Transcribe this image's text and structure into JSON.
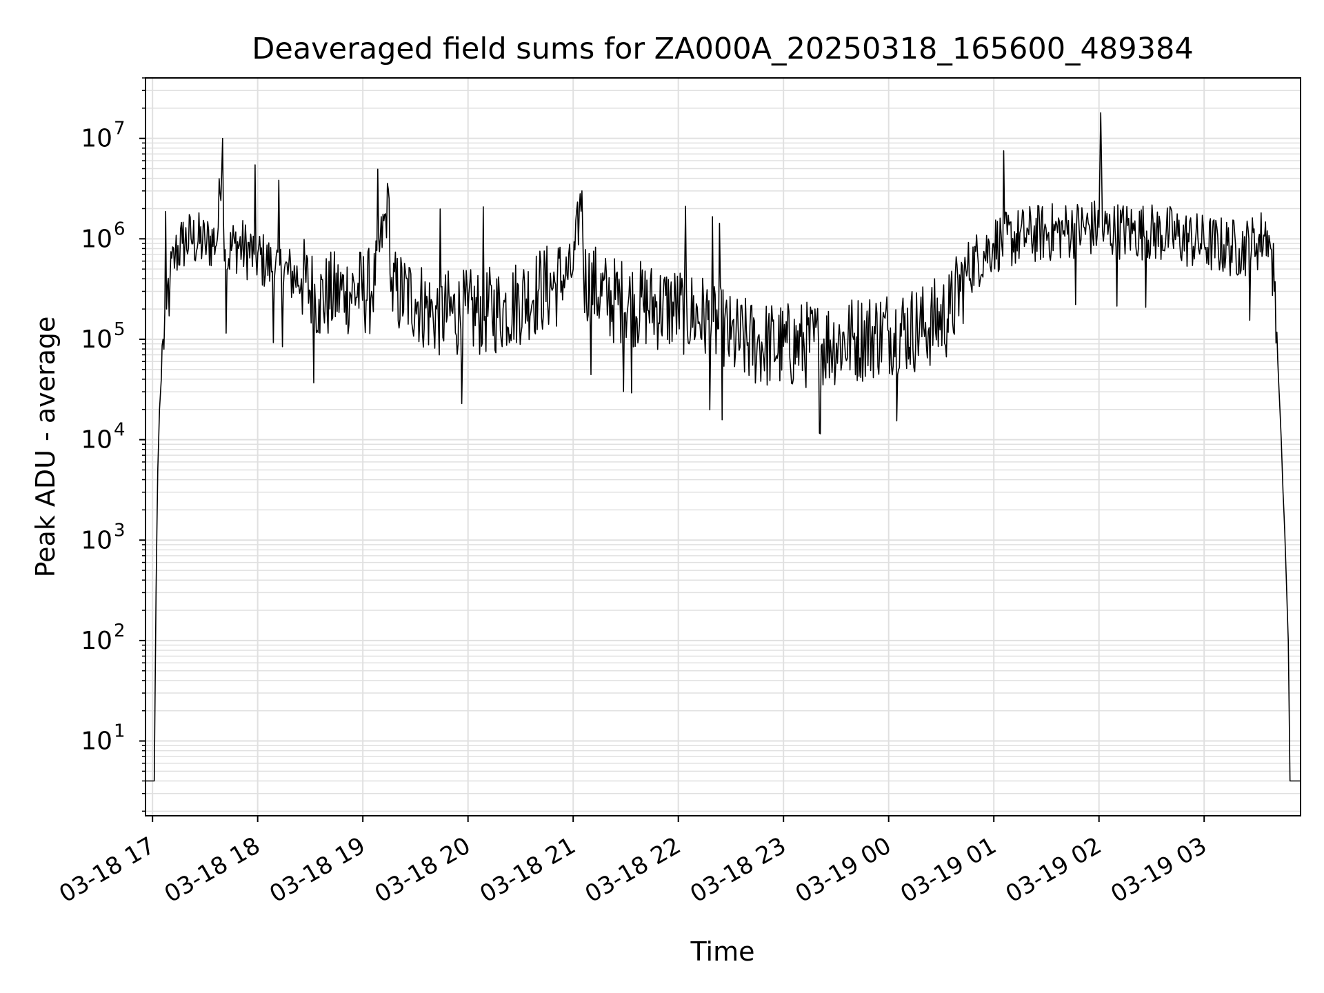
{
  "chart_data": {
    "type": "line",
    "title": "Deaveraged field sums for ZA000A_20250318_165600_489384",
    "xlabel": "Time",
    "ylabel": "Peak ADU - average",
    "yscale": "log",
    "ylim": [
      1.8,
      40000000
    ],
    "xlim": [
      "2025-03-18 16:56",
      "2025-03-19 03:55"
    ],
    "grid": true,
    "line_color": "#000000",
    "grid_color": "#e0e0e0",
    "x_ticks": [
      {
        "t": "2025-03-18 17:00",
        "label": "03-18 17"
      },
      {
        "t": "2025-03-18 18:00",
        "label": "03-18 18"
      },
      {
        "t": "2025-03-18 19:00",
        "label": "03-18 19"
      },
      {
        "t": "2025-03-18 20:00",
        "label": "03-18 20"
      },
      {
        "t": "2025-03-18 21:00",
        "label": "03-18 21"
      },
      {
        "t": "2025-03-18 22:00",
        "label": "03-18 22"
      },
      {
        "t": "2025-03-18 23:00",
        "label": "03-18 23"
      },
      {
        "t": "2025-03-19 00:00",
        "label": "03-19 00"
      },
      {
        "t": "2025-03-19 01:00",
        "label": "03-19 01"
      },
      {
        "t": "2025-03-19 02:00",
        "label": "03-19 02"
      },
      {
        "t": "2025-03-19 03:00",
        "label": "03-19 03"
      }
    ],
    "y_ticks": [
      {
        "v": 10,
        "base": "10",
        "exp": "1"
      },
      {
        "v": 100,
        "base": "10",
        "exp": "2"
      },
      {
        "v": 1000,
        "base": "10",
        "exp": "3"
      },
      {
        "v": 10000,
        "base": "10",
        "exp": "4"
      },
      {
        "v": 100000,
        "base": "10",
        "exp": "5"
      },
      {
        "v": 1000000,
        "base": "10",
        "exp": "6"
      },
      {
        "v": 10000000,
        "base": "10",
        "exp": "7"
      }
    ],
    "series": [
      {
        "points": [
          [
            "2025-03-18 16:56",
            4
          ],
          [
            "2025-03-18 17:01",
            4
          ],
          [
            "2025-03-18 17:02",
            300
          ],
          [
            "2025-03-18 17:03",
            5000
          ],
          [
            "2025-03-18 17:04",
            20000
          ],
          [
            "2025-03-18 17:05",
            40000
          ],
          [
            "2025-03-18 17:06",
            100000
          ],
          [
            "2025-03-18 17:08",
            200000
          ],
          [
            "2025-03-18 17:10",
            400000
          ],
          [
            "2025-03-18 17:13",
            700000
          ],
          [
            "2025-03-18 17:17",
            900000
          ],
          [
            "2025-03-18 17:22",
            1000000
          ],
          [
            "2025-03-18 17:30",
            900000
          ],
          [
            "2025-03-18 17:37",
            1000000
          ],
          [
            "2025-03-18 17:40",
            10000000
          ],
          [
            "2025-03-18 17:41",
            600000
          ],
          [
            "2025-03-18 17:47",
            900000
          ],
          [
            "2025-03-18 17:58",
            700000
          ],
          [
            "2025-03-18 18:10",
            500000
          ],
          [
            "2025-03-18 18:25",
            400000
          ],
          [
            "2025-03-18 18:35",
            250000
          ],
          [
            "2025-03-18 18:50",
            300000
          ],
          [
            "2025-03-18 19:05",
            300000
          ],
          [
            "2025-03-18 19:15",
            2500000
          ],
          [
            "2025-03-18 19:16",
            300000
          ],
          [
            "2025-03-18 19:30",
            250000
          ],
          [
            "2025-03-18 19:40",
            180000
          ],
          [
            "2025-03-18 20:00",
            180000
          ],
          [
            "2025-03-18 20:20",
            200000
          ],
          [
            "2025-03-18 20:40",
            300000
          ],
          [
            "2025-03-18 20:50",
            350000
          ],
          [
            "2025-03-18 21:00",
            500000
          ],
          [
            "2025-03-18 21:05",
            3000000
          ],
          [
            "2025-03-18 21:06",
            400000
          ],
          [
            "2025-03-18 21:20",
            250000
          ],
          [
            "2025-03-18 21:40",
            220000
          ],
          [
            "2025-03-18 22:00",
            200000
          ],
          [
            "2025-03-18 22:20",
            150000
          ],
          [
            "2025-03-18 22:30",
            100000
          ],
          [
            "2025-03-18 22:45",
            90000
          ],
          [
            "2025-03-18 23:00",
            85000
          ],
          [
            "2025-03-18 23:20",
            90000
          ],
          [
            "2025-03-18 23:40",
            100000
          ],
          [
            "2025-03-19 00:00",
            120000
          ],
          [
            "2025-03-19 00:20",
            130000
          ],
          [
            "2025-03-19 00:35",
            180000
          ],
          [
            "2025-03-19 00:45",
            500000
          ],
          [
            "2025-03-19 01:00",
            900000
          ],
          [
            "2025-03-19 01:20",
            1100000
          ],
          [
            "2025-03-19 01:40",
            1200000
          ],
          [
            "2025-03-19 02:00",
            1300000
          ],
          [
            "2025-03-19 02:01",
            18000000
          ],
          [
            "2025-03-19 02:02",
            1200000
          ],
          [
            "2025-03-19 02:20",
            1200000
          ],
          [
            "2025-03-19 02:40",
            1100000
          ],
          [
            "2025-03-19 03:00",
            900000
          ],
          [
            "2025-03-19 03:20",
            800000
          ],
          [
            "2025-03-19 03:30",
            900000
          ],
          [
            "2025-03-19 03:36",
            1200000
          ],
          [
            "2025-03-19 03:38",
            800000
          ],
          [
            "2025-03-19 03:40",
            300000
          ],
          [
            "2025-03-19 03:42",
            60000
          ],
          [
            "2025-03-19 03:44",
            10000
          ],
          [
            "2025-03-19 03:45",
            3000
          ],
          [
            "2025-03-19 03:46",
            1200
          ],
          [
            "2025-03-19 03:48",
            100
          ],
          [
            "2025-03-19 03:49",
            4
          ],
          [
            "2025-03-19 03:55",
            4
          ]
        ]
      }
    ]
  }
}
